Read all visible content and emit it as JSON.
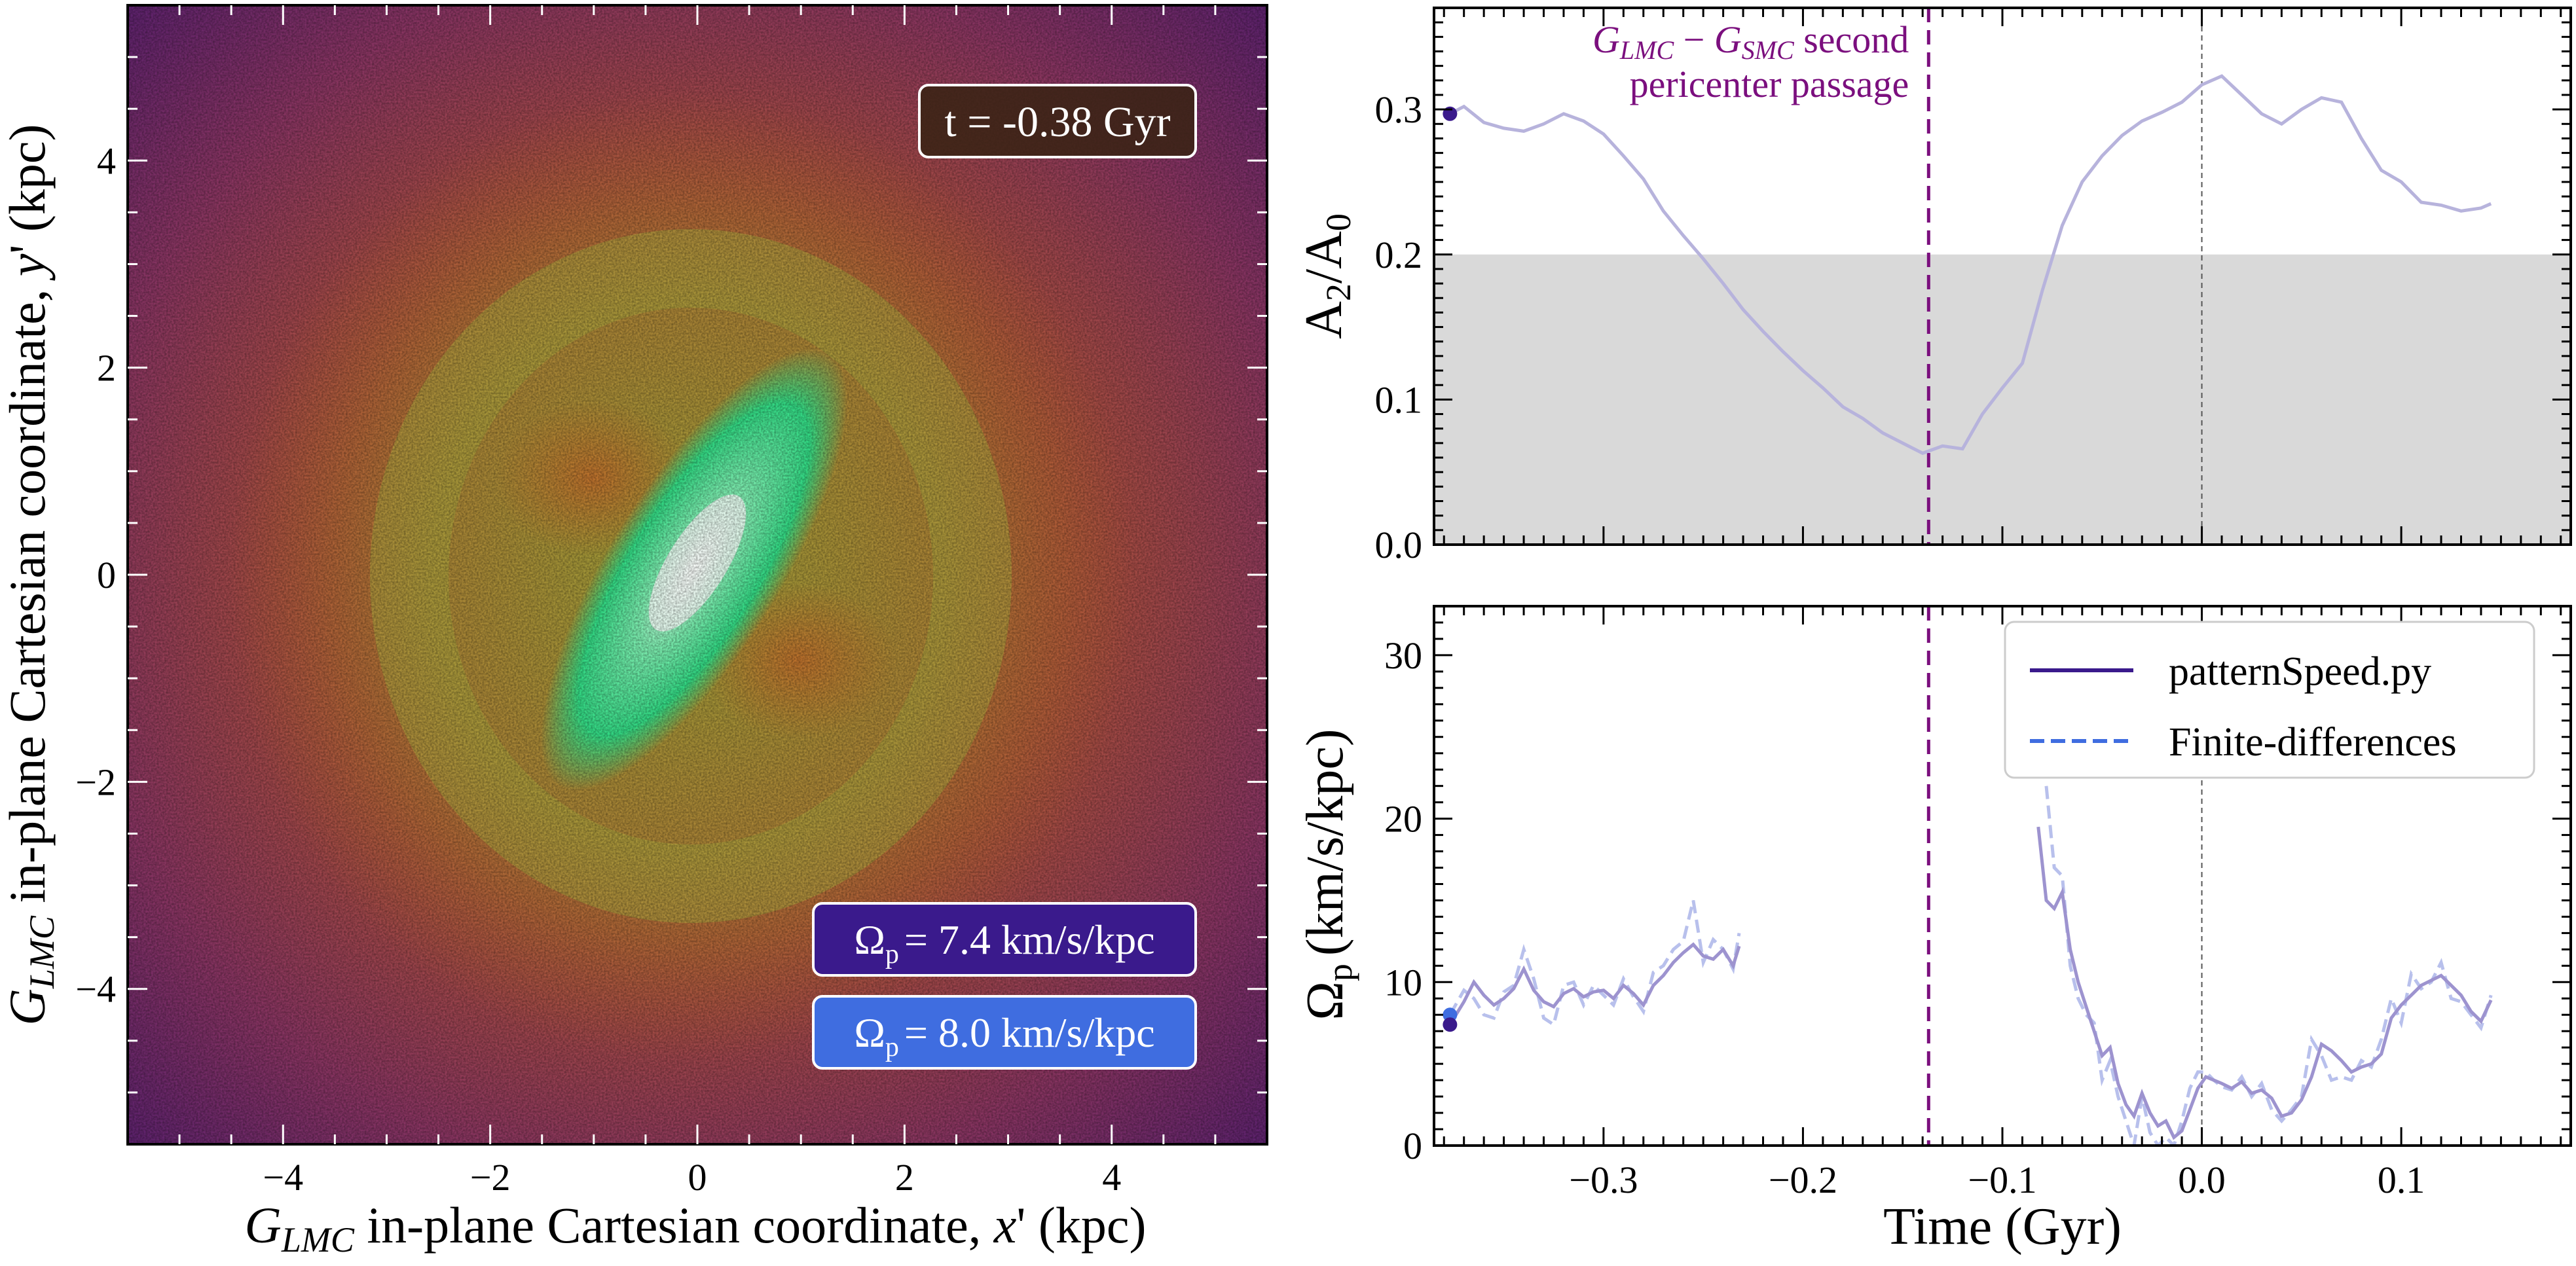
{
  "colors": {
    "purple_marker": "#7b0f7e",
    "series_solid": "#3a1a8c",
    "series_dashed": "#3f6de0",
    "threshold_band": "#d9d9d9",
    "pattern_box": "#3a1a8c",
    "fd_box": "#3f6de0"
  },
  "chart_data": [
    {
      "type": "heatmap",
      "name": "density-map",
      "xlabel": "G_LMC in-plane Cartesian coordinate, x' (kpc)",
      "ylabel": "G_LMC in-plane Cartesian coordinate, y' (kpc)",
      "xlim": [
        -5.5,
        5.5
      ],
      "ylim": [
        -5.5,
        5.5
      ],
      "xticks": [
        -4,
        -2,
        0,
        2,
        4
      ],
      "yticks": [
        -4,
        -2,
        0,
        2,
        4
      ],
      "xtick_labels": [
        "−4",
        "−2",
        "0",
        "2",
        "4"
      ],
      "ytick_labels": [
        "−4",
        "−2",
        "0",
        "2",
        "4"
      ],
      "time_label": "t = -0.38 Gyr",
      "omega_pattern_label": "Ω",
      "omega_pattern_value": "= 7.4 km/s/kpc",
      "omega_fd_label": "Ω",
      "omega_fd_value": "= 8.0 km/s/kpc",
      "omega_sub": "p"
    },
    {
      "type": "line",
      "name": "bar-strength",
      "ylabel": "A",
      "ylabel_sub1": "2",
      "ylabel_mid": "/A",
      "ylabel_sub2": "0",
      "xlim": [
        -0.385,
        0.185
      ],
      "ylim": [
        0.0,
        0.37
      ],
      "yticks": [
        0.0,
        0.1,
        0.2,
        0.3
      ],
      "ytick_labels": [
        "0.0",
        "0.1",
        "0.2",
        "0.3"
      ],
      "shaded_below": 0.2,
      "pericenter_time": -0.137,
      "annotation_line1": "G_LMC − G_SMC second",
      "annotation_line2": "pericenter passage",
      "current_point": {
        "x": -0.377,
        "y": 0.297
      },
      "series": [
        {
          "name": "A2/A0",
          "x": [
            -0.377,
            -0.37,
            -0.36,
            -0.35,
            -0.34,
            -0.33,
            -0.32,
            -0.31,
            -0.3,
            -0.29,
            -0.28,
            -0.27,
            -0.26,
            -0.25,
            -0.24,
            -0.23,
            -0.22,
            -0.21,
            -0.2,
            -0.19,
            -0.18,
            -0.17,
            -0.16,
            -0.15,
            -0.14,
            -0.13,
            -0.12,
            -0.11,
            -0.1,
            -0.09,
            -0.08,
            -0.07,
            -0.06,
            -0.05,
            -0.04,
            -0.03,
            -0.02,
            -0.01,
            0.0,
            0.01,
            0.02,
            0.03,
            0.04,
            0.05,
            0.06,
            0.07,
            0.08,
            0.09,
            0.1,
            0.11,
            0.12,
            0.13,
            0.14,
            0.145
          ],
          "values": [
            0.297,
            0.302,
            0.291,
            0.287,
            0.285,
            0.29,
            0.297,
            0.292,
            0.283,
            0.268,
            0.252,
            0.23,
            0.213,
            0.197,
            0.18,
            0.162,
            0.147,
            0.133,
            0.12,
            0.108,
            0.095,
            0.087,
            0.077,
            0.07,
            0.063,
            0.068,
            0.066,
            0.09,
            0.108,
            0.125,
            0.175,
            0.22,
            0.25,
            0.268,
            0.282,
            0.292,
            0.298,
            0.305,
            0.317,
            0.323,
            0.31,
            0.297,
            0.29,
            0.3,
            0.308,
            0.305,
            0.28,
            0.258,
            0.25,
            0.236,
            0.234,
            0.23,
            0.232,
            0.235
          ]
        }
      ]
    },
    {
      "type": "line",
      "name": "pattern-speed",
      "xlabel": "Time (Gyr)",
      "ylabel": "Ω",
      "ylabel_sub": "p",
      "ylabel_units": "(km/s/kpc)",
      "xlim": [
        -0.385,
        0.185
      ],
      "ylim": [
        0,
        33
      ],
      "xticks": [
        -0.3,
        -0.2,
        -0.1,
        0.0,
        0.1
      ],
      "xtick_labels": [
        "−0.3",
        "−0.2",
        "−0.1",
        "0.0",
        "0.1"
      ],
      "yticks": [
        0,
        10,
        20,
        30
      ],
      "ytick_labels": [
        "0",
        "10",
        "20",
        "30"
      ],
      "pericenter_time": -0.137,
      "current_points": [
        {
          "name": "patternSpeed.py",
          "x": -0.377,
          "y": 7.4
        },
        {
          "name": "Finite-differences",
          "x": -0.377,
          "y": 8.0
        }
      ],
      "legend": [
        "patternSpeed.py",
        "Finite-differences"
      ],
      "series": [
        {
          "name": "patternSpeed.py",
          "style": "solid",
          "segments": [
            {
              "x": [
                -0.377,
                -0.37,
                -0.365,
                -0.36,
                -0.355,
                -0.35,
                -0.345,
                -0.34,
                -0.335,
                -0.33,
                -0.325,
                -0.32,
                -0.315,
                -0.31,
                -0.305,
                -0.3,
                -0.295,
                -0.29,
                -0.285,
                -0.28,
                -0.275,
                -0.27,
                -0.265,
                -0.26,
                -0.255,
                -0.25,
                -0.245,
                -0.24,
                -0.235,
                -0.232
              ],
              "values": [
                7.4,
                8.8,
                10.0,
                9.2,
                8.6,
                9.0,
                9.6,
                10.8,
                9.5,
                8.8,
                8.5,
                9.3,
                9.6,
                9.1,
                9.4,
                9.5,
                9.0,
                9.8,
                9.3,
                8.6,
                9.8,
                10.4,
                11.2,
                11.8,
                12.3,
                11.6,
                11.4,
                12.0,
                11.0,
                12.2
              ]
            },
            {
              "x": [
                -0.082,
                -0.078,
                -0.074,
                -0.07,
                -0.066,
                -0.062,
                -0.058,
                -0.054,
                -0.05,
                -0.046,
                -0.042,
                -0.038,
                -0.034,
                -0.03,
                -0.026,
                -0.022,
                -0.018,
                -0.014,
                -0.01,
                -0.006,
                -0.002,
                0.002,
                0.006,
                0.01,
                0.015,
                0.02,
                0.025,
                0.03,
                0.035,
                0.04,
                0.045,
                0.05,
                0.055,
                0.06,
                0.065,
                0.07,
                0.075,
                0.08,
                0.085,
                0.09,
                0.095,
                0.1,
                0.105,
                0.11,
                0.115,
                0.12,
                0.125,
                0.13,
                0.135,
                0.14,
                0.145
              ],
              "values": [
                19.5,
                15.0,
                14.5,
                15.5,
                12.0,
                10.0,
                8.5,
                7.0,
                5.5,
                6.0,
                3.8,
                2.5,
                1.8,
                3.2,
                2.0,
                1.2,
                1.5,
                0.5,
                0.9,
                2.2,
                3.5,
                4.2,
                4.0,
                3.8,
                3.5,
                3.9,
                3.2,
                3.4,
                2.9,
                1.8,
                2.0,
                2.8,
                4.2,
                6.2,
                5.8,
                5.2,
                4.5,
                4.8,
                5.0,
                5.6,
                7.8,
                8.6,
                9.2,
                9.8,
                10.1,
                10.4,
                9.8,
                9.2,
                8.2,
                7.6,
                8.9
              ]
            }
          ]
        },
        {
          "name": "Finite-differences",
          "style": "dashed",
          "segments": [
            {
              "x": [
                -0.377,
                -0.37,
                -0.365,
                -0.36,
                -0.355,
                -0.35,
                -0.345,
                -0.34,
                -0.335,
                -0.33,
                -0.325,
                -0.32,
                -0.315,
                -0.31,
                -0.305,
                -0.3,
                -0.295,
                -0.29,
                -0.285,
                -0.28,
                -0.275,
                -0.27,
                -0.265,
                -0.26,
                -0.255,
                -0.25,
                -0.245,
                -0.24,
                -0.235,
                -0.232
              ],
              "values": [
                8.0,
                9.5,
                9.0,
                8.0,
                7.8,
                9.4,
                9.8,
                12.0,
                10.2,
                7.8,
                7.4,
                9.8,
                10.0,
                8.6,
                9.8,
                9.2,
                8.6,
                10.2,
                9.1,
                8.2,
                10.6,
                11.0,
                12.0,
                12.5,
                15.0,
                11.2,
                12.6,
                12.0,
                10.8,
                13.0
              ]
            },
            {
              "x": [
                -0.078,
                -0.074,
                -0.07,
                -0.066,
                -0.062,
                -0.058,
                -0.054,
                -0.05,
                -0.046,
                -0.042,
                -0.038,
                -0.034,
                -0.03,
                -0.026,
                -0.022,
                -0.018,
                -0.014,
                -0.01,
                -0.006,
                -0.002,
                0.002,
                0.006,
                0.01,
                0.015,
                0.02,
                0.025,
                0.03,
                0.035,
                0.04,
                0.045,
                0.05,
                0.055,
                0.06,
                0.065,
                0.07,
                0.075,
                0.08,
                0.085,
                0.09,
                0.095,
                0.1,
                0.105,
                0.11,
                0.115,
                0.12,
                0.125,
                0.13,
                0.135,
                0.14,
                0.145
              ],
              "values": [
                22.0,
                17.0,
                16.5,
                11.0,
                9.0,
                8.0,
                7.5,
                4.0,
                5.2,
                3.0,
                1.5,
                0.0,
                3.0,
                0.8,
                0.0,
                0.5,
                0.0,
                1.5,
                3.5,
                4.5,
                4.5,
                4.0,
                3.6,
                3.4,
                4.2,
                3.0,
                3.8,
                2.2,
                1.5,
                2.2,
                3.0,
                6.5,
                5.5,
                4.0,
                4.2,
                4.0,
                5.2,
                4.8,
                6.5,
                9.0,
                7.5,
                10.5,
                9.6,
                10.0,
                11.2,
                9.0,
                8.8,
                8.0,
                7.2,
                9.2
              ]
            }
          ]
        }
      ]
    }
  ]
}
